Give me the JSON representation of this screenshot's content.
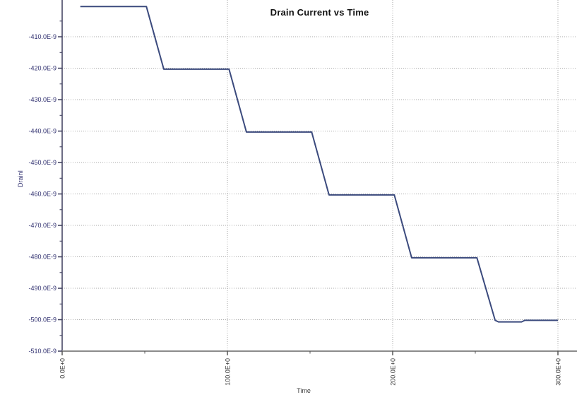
{
  "chart_data": {
    "type": "line",
    "title": "Drain Current vs Time",
    "xlabel": "Time",
    "ylabel": "DrainI",
    "xlim": [
      0,
      300
    ],
    "ylim_nA": [
      -510,
      -398.3
    ],
    "x_ticks": {
      "values": [
        0,
        100,
        200,
        300
      ],
      "labels": [
        "0.0E+0",
        "100.0E+0",
        "200.0E+0",
        "300.0E+0"
      ],
      "minor_values": [
        50,
        150,
        250
      ]
    },
    "y_ticks": {
      "values": [
        -410,
        -420,
        -430,
        -440,
        -450,
        -460,
        -470,
        -480,
        -490,
        -500,
        -510
      ],
      "labels": [
        "-410.0E-9",
        "-420.0E-9",
        "-430.0E-9",
        "-440.0E-9",
        "-450.0E-9",
        "-460.0E-9",
        "-470.0E-9",
        "-480.0E-9",
        "-490.0E-9",
        "-500.0E-9",
        "-510.0E-9"
      ],
      "minor_values": [
        -405,
        -415,
        -425,
        -435,
        -445,
        -455,
        -465,
        -475,
        -485,
        -495,
        -505
      ]
    },
    "grid": {
      "horizontal_at": [
        -410,
        -420,
        -430,
        -440,
        -450,
        -460,
        -470,
        -480,
        -490,
        -500
      ],
      "vertical_at": [
        100,
        200,
        300
      ],
      "style": "dotted"
    },
    "series": [
      {
        "name": "DrainI",
        "points_t_nA": [
          [
            11,
            -400.4
          ],
          [
            51,
            -400.4
          ],
          [
            61.5,
            -420.3
          ],
          [
            101,
            -420.3
          ],
          [
            111.5,
            -440.3
          ],
          [
            151,
            -440.3
          ],
          [
            161.5,
            -460.3
          ],
          [
            201,
            -460.3
          ],
          [
            211.5,
            -480.3
          ],
          [
            251,
            -480.3
          ],
          [
            262,
            -500.2
          ],
          [
            264,
            -500.7
          ],
          [
            278,
            -500.7
          ],
          [
            280,
            -500.2
          ],
          [
            300,
            -500.2
          ]
        ]
      }
    ]
  },
  "colors": {
    "series_line": "#3b4a7d",
    "grid_line": "#a8a8a8",
    "y_axis_line": "#3c3c5c",
    "x_axis_line": "#8c8c8c",
    "y_tick_color": "#3c3c5c",
    "x_tick_color": "#555555",
    "y_tick_label": "#2e2e6e",
    "x_tick_label": "#3c3c3c",
    "title_color": "#111111",
    "background": "#ffffff"
  }
}
